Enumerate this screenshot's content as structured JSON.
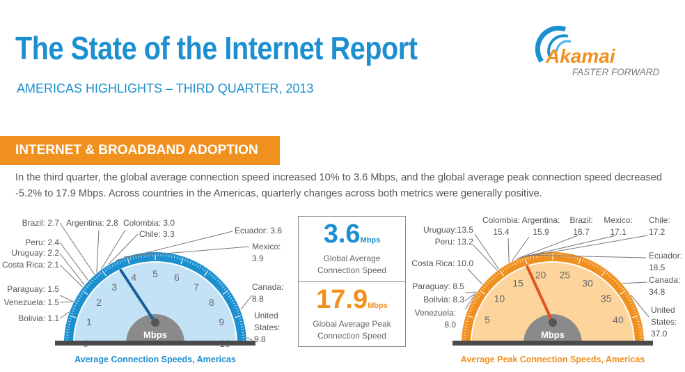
{
  "header": {
    "title": "The State of the Internet Report",
    "subtitle": "AMERICAS HIGHLIGHTS – THIRD QUARTER, 2013",
    "logo": {
      "brand": "Akamai",
      "tagline": "FASTER FORWARD",
      "colors": {
        "swoosh": "#1b8fd0",
        "wordmark": "#f0901e",
        "tagline": "#777777"
      }
    }
  },
  "section": {
    "banner": "INTERNET & BROADBAND ADOPTION",
    "banner_color": "#f0901e",
    "intro": "In the third quarter, the global average connection speed increased 10% to 3.6 Mbps, and the global average peak connection speed decreased -5.2% to 17.9 Mbps. Across countries in the Americas, quarterly changes across both metrics were generally positive."
  },
  "global": {
    "avg": {
      "value": "3.6",
      "unit": "Mbps",
      "label_1": "Global Average",
      "label_2": "Connection Speed",
      "color": "#1b8fd0"
    },
    "peak": {
      "value": "17.9",
      "unit": "Mbps",
      "label_1": "Global Average Peak",
      "label_2": "Connection Speed",
      "color": "#f0901e"
    }
  },
  "chart_data": [
    {
      "type": "gauge",
      "title": "Average Connection Speeds, Americas",
      "unit": "Mbps",
      "range": [
        0,
        10
      ],
      "ticks": [
        0,
        1,
        2,
        3,
        4,
        5,
        6,
        7,
        8,
        9,
        10
      ],
      "needle_value": 3.6,
      "colors": {
        "ring": "#1b8fd0",
        "face": "#c3e2f6",
        "needle": "#1a5e9c",
        "title": "#1b8fd0"
      },
      "series": [
        {
          "name": "Bolivia",
          "value": 1.1
        },
        {
          "name": "Venezuela",
          "value": 1.5
        },
        {
          "name": "Paraguay",
          "value": 1.5
        },
        {
          "name": "Costa Rica",
          "value": 2.1
        },
        {
          "name": "Uruguay",
          "value": 2.2
        },
        {
          "name": "Peru",
          "value": 2.4
        },
        {
          "name": "Brazil",
          "value": 2.7
        },
        {
          "name": "Argentina",
          "value": 2.8
        },
        {
          "name": "Colombia",
          "value": 3.0
        },
        {
          "name": "Chile",
          "value": 3.3
        },
        {
          "name": "Ecuador",
          "value": 3.6
        },
        {
          "name": "Mexico",
          "value": 3.9
        },
        {
          "name": "Canada",
          "value": 8.8
        },
        {
          "name": "United States",
          "value": 9.8
        }
      ]
    },
    {
      "type": "gauge",
      "title": "Average Peak Connection Speeds, Americas",
      "unit": "Mbps",
      "range": [
        0,
        45
      ],
      "ticks": [
        5,
        10,
        15,
        20,
        25,
        30,
        35,
        40
      ],
      "needle_value": 17.9,
      "colors": {
        "ring": "#f0901e",
        "face": "#fcd49c",
        "needle": "#e4521c",
        "title": "#f0901e"
      },
      "series": [
        {
          "name": "Venezuela",
          "value": 8.0
        },
        {
          "name": "Bolivia",
          "value": 8.3
        },
        {
          "name": "Paraguay",
          "value": 8.5
        },
        {
          "name": "Costa Rica",
          "value": 10.0
        },
        {
          "name": "Peru",
          "value": 13.2
        },
        {
          "name": "Uruguay",
          "value": 13.5
        },
        {
          "name": "Colombia",
          "value": 15.4
        },
        {
          "name": "Argentina",
          "value": 15.9
        },
        {
          "name": "Brazil",
          "value": 16.7
        },
        {
          "name": "Mexico",
          "value": 17.1
        },
        {
          "name": "Chile",
          "value": 17.2
        },
        {
          "name": "Ecuador",
          "value": 18.5
        },
        {
          "name": "Canada",
          "value": 34.8
        },
        {
          "name": "United States",
          "value": 37.0
        }
      ]
    }
  ]
}
